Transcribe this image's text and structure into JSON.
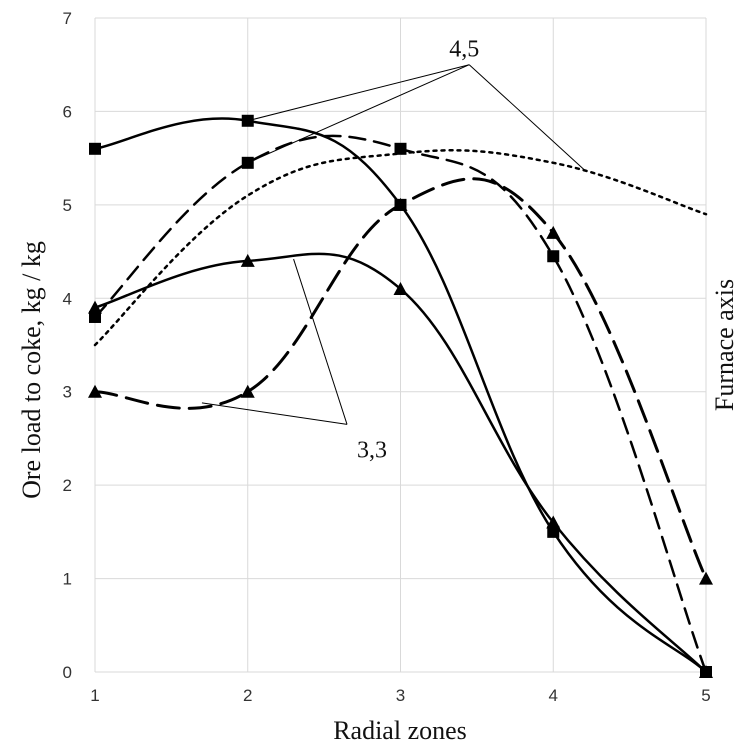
{
  "chart_data": {
    "type": "line",
    "xlabel": "Radial zones",
    "ylabel": "Ore load to coke, kg / kg",
    "side_label": "Furnace axis",
    "x": [
      1,
      2,
      3,
      4,
      5
    ],
    "xlim": [
      1,
      5
    ],
    "ylim": [
      0,
      7
    ],
    "x_ticks": [
      "1",
      "2",
      "3",
      "4",
      "5"
    ],
    "y_ticks": [
      "0",
      "1",
      "2",
      "3",
      "4",
      "5",
      "6",
      "7"
    ],
    "grid": true,
    "series": [
      {
        "marker": "square",
        "line": "solid",
        "values": [
          5.6,
          5.9,
          5.0,
          1.5,
          0.0
        ]
      },
      {
        "marker": "square",
        "line": "dashed",
        "values": [
          3.8,
          5.45,
          5.6,
          4.45,
          0.0
        ]
      },
      {
        "marker": "triangle",
        "line": "solid",
        "values": [
          3.9,
          4.4,
          4.1,
          1.6,
          0.0
        ]
      },
      {
        "marker": "triangle",
        "line": "dashed",
        "values": [
          3.0,
          3.0,
          5.0,
          4.7,
          1.0
        ]
      },
      {
        "marker": "none",
        "line": "dotted",
        "values": [
          3.5,
          5.1,
          5.55,
          5.45,
          4.9
        ]
      }
    ],
    "annotations": [
      {
        "text": "4,5",
        "anchor": [
          3.45,
          6.5
        ],
        "targets": [
          [
            2.0,
            5.9
          ],
          [
            2.0,
            5.45
          ],
          [
            4.2,
            5.38
          ]
        ]
      },
      {
        "text": "3,3",
        "anchor": [
          2.65,
          2.65
        ],
        "targets": [
          [
            2.3,
            4.42
          ],
          [
            1.7,
            2.88
          ]
        ]
      }
    ]
  }
}
